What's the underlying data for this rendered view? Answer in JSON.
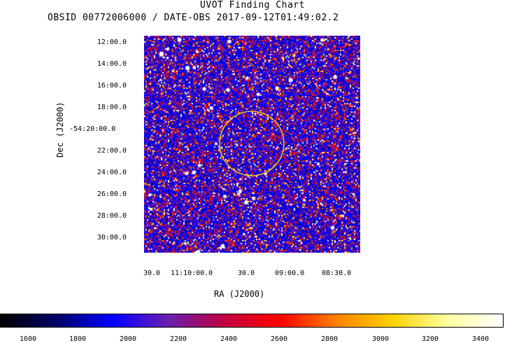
{
  "title": "UVOT Finding Chart",
  "subtitle": "OBSID 00772006000 / DATE-OBS 2017-09-12T01:49:02.2",
  "axes": {
    "ylabel": "Dec (J2000)",
    "xlabel": "RA (J2000)",
    "dec_ticks": [
      "12:00.0",
      "14:00.0",
      "16:00.0",
      "18:00.0",
      "-54:20:00.0",
      "22:00.0",
      "24:00.0",
      "26:00.0",
      "28:00.0",
      "30:00.0"
    ],
    "ra_ticks": [
      "30.0",
      "11:10:00.0",
      "30.0",
      "09:00.0",
      "08:30.0"
    ]
  },
  "source_circle": {
    "color": "#e8c020"
  },
  "colorbar": {
    "ticks": [
      "1600",
      "1800",
      "2000",
      "2200",
      "2400",
      "2600",
      "2800",
      "3000",
      "3200",
      "3400"
    ],
    "gradient_colors": [
      "#000000",
      "#00006a",
      "#0000ff",
      "#6a1fb0",
      "#c00040",
      "#ff0000",
      "#ff8000",
      "#ffd000",
      "#ffffa0",
      "#ffffff"
    ]
  },
  "image_colors": {
    "background": "#2a2a9a",
    "noise": [
      "#0000ff",
      "#0000c8",
      "#5a20b0",
      "#8a1a80",
      "#d00020",
      "#ff2000",
      "#ff8000",
      "#ffff80",
      "#ffffff"
    ]
  }
}
